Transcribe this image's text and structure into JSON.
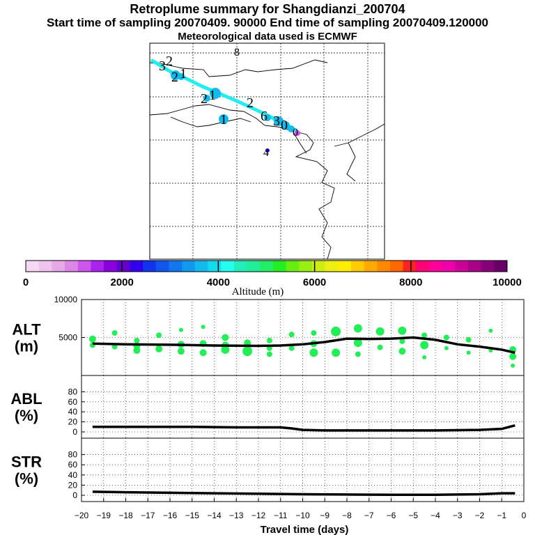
{
  "header": {
    "title": "Retroplume summary for Shangdianzi_200704",
    "sampling_line": "Start time of sampling 20070409. 90000     End time of sampling 20070409.120000",
    "met_line": "Meteorological data used is ECMWF"
  },
  "colorbar": {
    "label": "Altitude (m)",
    "tick_labels": [
      "0",
      "2000",
      "4000",
      "6000",
      "8000",
      "10000"
    ],
    "colors": [
      "#f4d8f4",
      "#eec4ee",
      "#e6a8e6",
      "#dc86e6",
      "#cc55ee",
      "#aa22ee",
      "#8800dd",
      "#6600cc",
      "#3300ee",
      "#1133ee",
      "#1155ee",
      "#1177ee",
      "#1199ee",
      "#11bbee",
      "#11ddee",
      "#22ffee",
      "#22eebb",
      "#22ee99",
      "#22ee66",
      "#22ee22",
      "#66ee11",
      "#99ee11",
      "#ccee11",
      "#eeee11",
      "#ffee00",
      "#ffcc00",
      "#ffaa00",
      "#ff8800",
      "#ff6600",
      "#ff2222",
      "#ff0077",
      "#ff0099",
      "#ee00aa",
      "#cc0099",
      "#aa0088",
      "#880077",
      "#660066"
    ]
  },
  "map": {
    "trajectory_labels": [
      "3",
      "2",
      "2",
      "1",
      "8",
      "2",
      "1",
      "2",
      "1",
      "6",
      "3",
      "0",
      "0",
      "4"
    ],
    "trajectory_color": "#22eeee",
    "marker_color": "#11bbee"
  },
  "chart_data": [
    {
      "type": "line",
      "panel": "ALT",
      "ylabel": "ALT\n(m)",
      "ylabel_lines": [
        "ALT",
        "(m)"
      ],
      "ylim": [
        0,
        10000
      ],
      "yticks": [
        5000,
        10000
      ],
      "ytick_labels": [
        "5000",
        "10000"
      ],
      "x": [
        -19.5,
        -18,
        -16,
        -14,
        -12,
        -11,
        -10,
        -9,
        -8,
        -7,
        -6,
        -5,
        -4,
        -3,
        -2,
        -1,
        -0.4
      ],
      "values": [
        4200,
        4100,
        4050,
        3950,
        3900,
        3950,
        4100,
        4400,
        4850,
        4800,
        4850,
        5000,
        4700,
        4100,
        3800,
        3400,
        3000
      ],
      "scatter_x": [
        -19.5,
        -19.5,
        -18.5,
        -18.5,
        -17.5,
        -17.5,
        -17.5,
        -16.5,
        -16.5,
        -15.5,
        -15.5,
        -15.5,
        -14.5,
        -14.5,
        -14.5,
        -13.5,
        -13.5,
        -13.5,
        -12.5,
        -12.5,
        -11.5,
        -11.5,
        -11.5,
        -10.5,
        -10.5,
        -9.5,
        -9.5,
        -9.5,
        -8.5,
        -8.5,
        -7.5,
        -7.5,
        -7.5,
        -6.5,
        -6.5,
        -5.5,
        -5.5,
        -5.5,
        -4.5,
        -4.5,
        -4.5,
        -3.5,
        -3.5,
        -2.5,
        -2.5,
        -1.5,
        -1.5,
        -0.5,
        -0.5,
        -0.5
      ],
      "scatter_y": [
        4800,
        4000,
        5600,
        3800,
        4600,
        3900,
        3300,
        5300,
        3500,
        6000,
        4100,
        3200,
        6400,
        4200,
        3000,
        5000,
        3400,
        4000,
        3200,
        4300,
        4600,
        2800,
        3600,
        5400,
        3600,
        5600,
        4200,
        3000,
        5800,
        3000,
        6200,
        4300,
        2800,
        5800,
        3700,
        5900,
        3200,
        4500,
        5300,
        2400,
        4000,
        5000,
        3600,
        4700,
        3000,
        5900,
        3300,
        3400,
        2500,
        1300
      ],
      "scatter_size": [
        5,
        4,
        4,
        4,
        4,
        5,
        5,
        4,
        5,
        3,
        5,
        5,
        3,
        5,
        5,
        5,
        6,
        5,
        7,
        5,
        4,
        4,
        4,
        4,
        4,
        4,
        5,
        6,
        7,
        6,
        6,
        6,
        4,
        6,
        4,
        6,
        5,
        4,
        4,
        3,
        6,
        4,
        3,
        4,
        3,
        3,
        3,
        5,
        5,
        3
      ],
      "scatter_color": "#22ee55",
      "line_color": "#000000"
    },
    {
      "type": "line",
      "panel": "ABL",
      "ylabel_lines": [
        "ABL",
        "(%)"
      ],
      "ylim": [
        0,
        100
      ],
      "yticks": [
        0,
        20,
        40,
        60,
        80
      ],
      "ytick_labels": [
        "0",
        "20",
        "40",
        "60",
        "80"
      ],
      "x": [
        -19.5,
        -17,
        -15,
        -13,
        -12,
        -11.5,
        -11,
        -10.5,
        -10,
        -9,
        -8,
        -6,
        -4,
        -2,
        -1,
        -0.4
      ],
      "values": [
        10,
        10,
        10,
        9,
        9,
        9,
        9,
        7,
        4,
        3,
        3,
        3,
        3,
        4,
        6,
        13
      ],
      "line_color": "#000000"
    },
    {
      "type": "line",
      "panel": "STR",
      "ylabel_lines": [
        "STR",
        "(%)"
      ],
      "ylim": [
        0,
        100
      ],
      "yticks": [
        0,
        20,
        40,
        60,
        80
      ],
      "ytick_labels": [
        "0",
        "20",
        "40",
        "60",
        "80"
      ],
      "x": [
        -19.5,
        -18,
        -16,
        -14,
        -12,
        -10,
        -8,
        -6,
        -4,
        -2,
        -1,
        -0.4
      ],
      "values": [
        7,
        6,
        5,
        4,
        3,
        2,
        1.5,
        1,
        1,
        2,
        4,
        4
      ],
      "line_color": "#000000",
      "xlabel": "Travel time (days)",
      "xlim": [
        -20,
        0
      ],
      "xticks": [
        -20,
        -19,
        -18,
        -17,
        -16,
        -15,
        -14,
        -13,
        -12,
        -11,
        -10,
        -9,
        -8,
        -7,
        -6,
        -5,
        -4,
        -3,
        -2,
        -1,
        0
      ],
      "xtick_labels": [
        "−20",
        "−19",
        "−18",
        "−17",
        "−16",
        "−15",
        "−14",
        "−13",
        "−12",
        "−11",
        "−10",
        "−9",
        "−8",
        "−7",
        "−6",
        "−5",
        "−4",
        "−3",
        "−2",
        "−1",
        "0"
      ]
    }
  ]
}
